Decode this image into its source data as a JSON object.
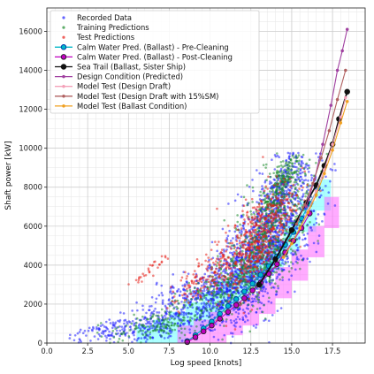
{
  "chart_data": {
    "type": "scatter",
    "xlabel": "Log speed [knots]",
    "ylabel": "Shaft power [kW]",
    "xlim": [
      0,
      19.5
    ],
    "ylim": [
      0,
      17200
    ],
    "xticks": [
      "0.0",
      "2.5",
      "5.0",
      "7.5",
      "10.0",
      "12.5",
      "15.0",
      "17.5"
    ],
    "xtick_values": [
      0,
      2.5,
      5,
      7.5,
      10,
      12.5,
      15,
      17.5
    ],
    "yticks": [
      "0",
      "2000",
      "4000",
      "6000",
      "8000",
      "10000",
      "12000",
      "14000",
      "16000"
    ],
    "ytick_values": [
      0,
      2000,
      4000,
      6000,
      8000,
      10000,
      12000,
      14000,
      16000
    ],
    "grid": true,
    "minor_grid": true,
    "legend_position": "top-left",
    "series": [
      {
        "name": "Recorded Data",
        "kind": "scatter",
        "color": "#1f1fff",
        "clusters": [
          {
            "cx": 13.5,
            "cy": 5000,
            "sx": 1.6,
            "sy": 1500,
            "n": 1100
          },
          {
            "cx": 11.5,
            "cy": 3200,
            "sx": 1.4,
            "sy": 900,
            "n": 500
          },
          {
            "cx": 8.5,
            "cy": 2000,
            "sx": 1.6,
            "sy": 700,
            "n": 300
          },
          {
            "cx": 5.5,
            "cy": 800,
            "sx": 1.5,
            "sy": 400,
            "n": 150
          },
          {
            "cx": 3.5,
            "cy": 600,
            "sx": 1.0,
            "sy": 250,
            "n": 60
          },
          {
            "cx": 14.3,
            "cy": 7800,
            "sx": 0.8,
            "sy": 900,
            "n": 300
          }
        ]
      },
      {
        "name": "Training Predictions",
        "kind": "scatter",
        "color": "#1a8a2a",
        "clusters": [
          {
            "cx": 13.6,
            "cy": 5600,
            "sx": 1.3,
            "sy": 1500,
            "n": 650
          },
          {
            "cx": 10.5,
            "cy": 2700,
            "sx": 1.6,
            "sy": 700,
            "n": 250
          },
          {
            "cx": 6.5,
            "cy": 900,
            "sx": 1.3,
            "sy": 350,
            "n": 120
          },
          {
            "cx": 14.4,
            "cy": 8200,
            "sx": 0.6,
            "sy": 600,
            "n": 160
          }
        ]
      },
      {
        "name": "Test Predictions",
        "kind": "scatter",
        "color": "#e8201a",
        "clusters": [
          {
            "cx": 12.8,
            "cy": 5200,
            "sx": 1.2,
            "sy": 1100,
            "n": 550
          },
          {
            "cx": 9.8,
            "cy": 3600,
            "sx": 1.1,
            "sy": 500,
            "n": 120
          },
          {
            "cx": 6.2,
            "cy": 3700,
            "sx": 0.5,
            "sy": 150,
            "n": 30
          }
        ]
      },
      {
        "name": "Calm Water Pred. (Ballast) - Pre-Cleaning",
        "kind": "line",
        "color": "#00b7c7",
        "marker_fill": "#00b7c7",
        "marker_edge": "#0033aa",
        "x": [
          8.6,
          9.1,
          9.6,
          10.1,
          10.6,
          11.1,
          11.6,
          12.1,
          12.6,
          13.1,
          13.6,
          14.1,
          14.6,
          15.1,
          15.6,
          16.1,
          16.6
        ],
        "y": [
          100,
          400,
          750,
          1100,
          1500,
          1900,
          2250,
          2650,
          3050,
          3500,
          3950,
          4450,
          5050,
          5700,
          6400,
          7150,
          7950
        ]
      },
      {
        "name": "Calm Water Pred. (Ballast) - Post-Cleaning",
        "kind": "line",
        "color": "#c000c0",
        "marker_fill": "#c000c0",
        "marker_edge": "#222222",
        "x": [
          8.6,
          9.1,
          9.6,
          10.1,
          10.6,
          11.1,
          11.6,
          12.1,
          12.6,
          13.1,
          13.6,
          14.1,
          14.6,
          15.1,
          15.6,
          16.1
        ],
        "y": [
          50,
          300,
          600,
          900,
          1250,
          1600,
          1950,
          2300,
          2700,
          3100,
          3550,
          4050,
          4650,
          5250,
          5900,
          6650
        ]
      },
      {
        "name": "Sea Trail (Ballast, Sister Ship)",
        "kind": "line",
        "color": "#111111",
        "marker_fill": "#111111",
        "marker_edge": "#111111",
        "x": [
          13.0,
          14.0,
          15.0,
          15.9,
          16.5,
          17.0,
          17.5,
          17.9,
          18.4
        ],
        "y": [
          3000,
          4300,
          5800,
          7200,
          8100,
          9100,
          10200,
          11500,
          12900
        ]
      },
      {
        "name": "Design Condition (Predicted)",
        "kind": "line",
        "color": "#a040a0",
        "marker_fill": "#a040a0",
        "marker_edge": "#a040a0",
        "x": [
          15.9,
          16.4,
          16.9,
          17.4,
          17.8,
          18.1,
          18.4
        ],
        "y": [
          7000,
          8400,
          10200,
          12200,
          14000,
          15000,
          16100
        ]
      },
      {
        "name": "Model Test (Design Draft)",
        "kind": "line",
        "color": "#f4a0b8",
        "marker_fill": "#f4a0b8",
        "marker_edge": "#f4a0b8",
        "x": [
          15.5,
          16.0,
          16.5,
          17.0,
          17.5,
          18.0,
          18.3
        ],
        "y": [
          5900,
          6800,
          7800,
          8900,
          10200,
          11600,
          12600
        ]
      },
      {
        "name": "Model Test (Design Draft with 15%SM)",
        "kind": "line",
        "color": "#b06060",
        "marker_fill": "#b06060",
        "marker_edge": "#b06060",
        "x": [
          15.3,
          15.8,
          16.3,
          16.8,
          17.3,
          17.8,
          18.3
        ],
        "y": [
          6100,
          7100,
          8200,
          9500,
          10900,
          12500,
          14000
        ]
      },
      {
        "name": "Model Test (Ballast Condition)",
        "kind": "line",
        "color": "#f0a020",
        "marker_fill": "#f0a020",
        "marker_edge": "#f0a020",
        "x": [
          14.5,
          15.0,
          15.5,
          16.0,
          16.5,
          17.0,
          17.5,
          18.0,
          18.4
        ],
        "y": [
          4400,
          5100,
          5900,
          6700,
          7600,
          8700,
          9900,
          11300,
          12400
        ]
      }
    ],
    "density_bands": [
      {
        "color": "#66ffff",
        "opacity": 0.55,
        "x": [
          5.5,
          6.5,
          7.5,
          8.5,
          9.5,
          10.5,
          11.5,
          12.5,
          13.5,
          14.5,
          15.5,
          16.5
        ],
        "y": [
          0,
          300,
          700,
          1200,
          1700,
          2300,
          2900,
          3600,
          4400,
          5300,
          6400,
          7500
        ]
      },
      {
        "color": "#ff66ff",
        "opacity": 0.55,
        "x": [
          8.0,
          9.0,
          10.0,
          11.0,
          12.0,
          13.0,
          14.0,
          15.0,
          16.0,
          17.0
        ],
        "y": [
          0,
          300,
          700,
          1100,
          1600,
          2200,
          3000,
          3900,
          5100,
          6600
        ]
      }
    ]
  }
}
